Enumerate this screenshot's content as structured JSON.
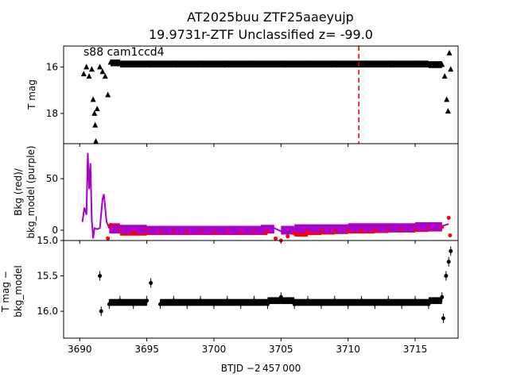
{
  "figure": {
    "title_line1": "AT2025buu  ZTF25aaeyujp",
    "title_line2": "19.9731r-ZTF Unclassified z= -99.0",
    "annotation": "s88 cam1ccd4",
    "xlabel": "BTJD −2 457 000"
  },
  "chart_data": [
    {
      "type": "scatter",
      "panel": "top",
      "ylabel": "T mag",
      "y_inverted": true,
      "xlim": [
        3688.8,
        3718.2
      ],
      "ylim": [
        15.1,
        19.3
      ],
      "x_ticks": [
        3690,
        3695,
        3700,
        3705,
        3710,
        3715
      ],
      "y_ticks": [
        16,
        18
      ],
      "marker": "triangle",
      "color": "#000000",
      "vline": {
        "x": 3710.8,
        "color": "#e00000",
        "style": "dashed"
      },
      "series": [
        {
          "values": [
            {
              "x": 3690.3,
              "y": 16.3
            },
            {
              "x": 3690.5,
              "y": 16.0
            },
            {
              "x": 3690.7,
              "y": 16.4
            },
            {
              "x": 3690.9,
              "y": 16.1
            },
            {
              "x": 3691.0,
              "y": 17.4
            },
            {
              "x": 3691.1,
              "y": 18.0
            },
            {
              "x": 3691.15,
              "y": 18.5
            },
            {
              "x": 3691.2,
              "y": 19.2
            },
            {
              "x": 3691.3,
              "y": 17.8
            },
            {
              "x": 3691.5,
              "y": 16.0
            },
            {
              "x": 3691.7,
              "y": 16.2
            },
            {
              "x": 3691.9,
              "y": 16.4
            },
            {
              "x": 3692.1,
              "y": 17.2
            },
            {
              "x": 3692.3,
              "y": 15.8
            },
            {
              "x": 3693.0,
              "y": 15.85
            },
            {
              "x": 3694.0,
              "y": 15.9
            },
            {
              "x": 3695.0,
              "y": 15.85
            },
            {
              "x": 3696.0,
              "y": 15.9
            },
            {
              "x": 3697.0,
              "y": 15.85
            },
            {
              "x": 3698.0,
              "y": 15.9
            },
            {
              "x": 3699.0,
              "y": 15.85
            },
            {
              "x": 3700.0,
              "y": 15.9
            },
            {
              "x": 3701.0,
              "y": 15.85
            },
            {
              "x": 3702.0,
              "y": 15.9
            },
            {
              "x": 3703.0,
              "y": 15.85
            },
            {
              "x": 3704.0,
              "y": 15.9
            },
            {
              "x": 3705.0,
              "y": 15.85
            },
            {
              "x": 3706.0,
              "y": 15.9
            },
            {
              "x": 3707.0,
              "y": 15.85
            },
            {
              "x": 3708.0,
              "y": 15.9
            },
            {
              "x": 3709.0,
              "y": 15.85
            },
            {
              "x": 3710.0,
              "y": 15.9
            },
            {
              "x": 3711.0,
              "y": 15.85
            },
            {
              "x": 3712.0,
              "y": 15.9
            },
            {
              "x": 3713.0,
              "y": 15.85
            },
            {
              "x": 3714.0,
              "y": 15.9
            },
            {
              "x": 3715.0,
              "y": 15.85
            },
            {
              "x": 3716.0,
              "y": 15.9
            },
            {
              "x": 3717.0,
              "y": 15.9
            },
            {
              "x": 3717.2,
              "y": 16.4
            },
            {
              "x": 3717.35,
              "y": 17.4
            },
            {
              "x": 3717.45,
              "y": 17.9
            },
            {
              "x": 3717.55,
              "y": 15.4
            },
            {
              "x": 3717.65,
              "y": 16.1
            }
          ]
        }
      ]
    },
    {
      "type": "line",
      "panel": "middle",
      "ylabel_line1": "Bkg (red)/",
      "ylabel_line2": "bkg_model (purple)",
      "xlim": [
        3688.8,
        3718.2
      ],
      "ylim": [
        -10,
        84
      ],
      "y_ticks": [
        0,
        50
      ],
      "series": [
        {
          "color": "#ff0000",
          "marker": "circle",
          "values": [
            {
              "x": 3692.1,
              "y": -8
            },
            {
              "x": 3692.3,
              "y": 5
            },
            {
              "x": 3693.0,
              "y": 0
            },
            {
              "x": 3694.0,
              "y": -2
            },
            {
              "x": 3695.0,
              "y": 0
            },
            {
              "x": 3696.0,
              "y": -1
            },
            {
              "x": 3697.0,
              "y": 0
            },
            {
              "x": 3698.0,
              "y": -1
            },
            {
              "x": 3699.0,
              "y": 0
            },
            {
              "x": 3700.0,
              "y": -1
            },
            {
              "x": 3701.0,
              "y": 0
            },
            {
              "x": 3702.0,
              "y": -1
            },
            {
              "x": 3703.0,
              "y": 0
            },
            {
              "x": 3704.0,
              "y": -1
            },
            {
              "x": 3704.6,
              "y": -8
            },
            {
              "x": 3705.0,
              "y": -10
            },
            {
              "x": 3705.5,
              "y": -6
            },
            {
              "x": 3706.0,
              "y": -3
            },
            {
              "x": 3707.0,
              "y": -1
            },
            {
              "x": 3708.0,
              "y": 0
            },
            {
              "x": 3709.0,
              "y": 0
            },
            {
              "x": 3710.0,
              "y": 1
            },
            {
              "x": 3711.0,
              "y": 1
            },
            {
              "x": 3712.0,
              "y": 1
            },
            {
              "x": 3713.0,
              "y": 2
            },
            {
              "x": 3714.0,
              "y": 2
            },
            {
              "x": 3715.0,
              "y": 2
            },
            {
              "x": 3716.0,
              "y": 3
            },
            {
              "x": 3717.0,
              "y": 3
            },
            {
              "x": 3717.5,
              "y": 12
            },
            {
              "x": 3717.6,
              "y": -5
            }
          ]
        },
        {
          "color": "#aa00cc",
          "marker": "line",
          "values": [
            {
              "x": 3690.2,
              "y": 8
            },
            {
              "x": 3690.35,
              "y": 22
            },
            {
              "x": 3690.5,
              "y": 15
            },
            {
              "x": 3690.6,
              "y": 75
            },
            {
              "x": 3690.7,
              "y": 40
            },
            {
              "x": 3690.8,
              "y": 65
            },
            {
              "x": 3690.9,
              "y": 10
            },
            {
              "x": 3691.0,
              "y": -8
            },
            {
              "x": 3691.1,
              "y": 2
            },
            {
              "x": 3691.3,
              "y": 1
            },
            {
              "x": 3691.5,
              "y": 2
            },
            {
              "x": 3691.7,
              "y": 30
            },
            {
              "x": 3691.8,
              "y": 35
            },
            {
              "x": 3692.0,
              "y": 8
            },
            {
              "x": 3692.2,
              "y": 2
            },
            {
              "x": 3695.0,
              "y": 0
            },
            {
              "x": 3700.0,
              "y": 0
            },
            {
              "x": 3703.5,
              "y": 0
            },
            {
              "x": 3704.5,
              "y": 2
            },
            {
              "x": 3705.0,
              "y": -1
            },
            {
              "x": 3706.0,
              "y": 1
            },
            {
              "x": 3710.0,
              "y": 2
            },
            {
              "x": 3715.0,
              "y": 3
            },
            {
              "x": 3717.0,
              "y": 4
            },
            {
              "x": 3717.5,
              "y": 6
            }
          ]
        }
      ]
    },
    {
      "type": "scatter",
      "panel": "bottom",
      "ylabel_line1": "T mag −",
      "ylabel_line2": "bkg_model",
      "y_inverted": true,
      "xlim": [
        3688.8,
        3718.2
      ],
      "ylim": [
        15.0,
        16.38
      ],
      "y_ticks": [
        15.0,
        15.5,
        16.0
      ],
      "marker": "circle",
      "color": "#000000",
      "series": [
        {
          "values": [
            {
              "x": 3691.5,
              "y": 15.5
            },
            {
              "x": 3691.6,
              "y": 16.0
            },
            {
              "x": 3692.2,
              "y": 15.9
            },
            {
              "x": 3693.0,
              "y": 15.85
            },
            {
              "x": 3694.0,
              "y": 15.9
            },
            {
              "x": 3695.0,
              "y": 15.85
            },
            {
              "x": 3695.3,
              "y": 15.6
            },
            {
              "x": 3696.0,
              "y": 15.9
            },
            {
              "x": 3697.0,
              "y": 15.85
            },
            {
              "x": 3698.0,
              "y": 15.9
            },
            {
              "x": 3699.0,
              "y": 15.85
            },
            {
              "x": 3700.0,
              "y": 15.9
            },
            {
              "x": 3701.0,
              "y": 15.85
            },
            {
              "x": 3702.0,
              "y": 15.9
            },
            {
              "x": 3703.0,
              "y": 15.85
            },
            {
              "x": 3704.0,
              "y": 15.9
            },
            {
              "x": 3705.0,
              "y": 15.8
            },
            {
              "x": 3706.0,
              "y": 15.9
            },
            {
              "x": 3707.0,
              "y": 15.85
            },
            {
              "x": 3708.0,
              "y": 15.9
            },
            {
              "x": 3709.0,
              "y": 15.85
            },
            {
              "x": 3710.0,
              "y": 15.9
            },
            {
              "x": 3711.0,
              "y": 15.85
            },
            {
              "x": 3712.0,
              "y": 15.9
            },
            {
              "x": 3713.0,
              "y": 15.85
            },
            {
              "x": 3714.0,
              "y": 15.9
            },
            {
              "x": 3715.0,
              "y": 15.85
            },
            {
              "x": 3716.0,
              "y": 15.9
            },
            {
              "x": 3717.0,
              "y": 15.8
            },
            {
              "x": 3717.1,
              "y": 16.1
            },
            {
              "x": 3717.3,
              "y": 15.5
            },
            {
              "x": 3717.5,
              "y": 15.3
            },
            {
              "x": 3717.65,
              "y": 15.15
            }
          ]
        }
      ]
    }
  ]
}
